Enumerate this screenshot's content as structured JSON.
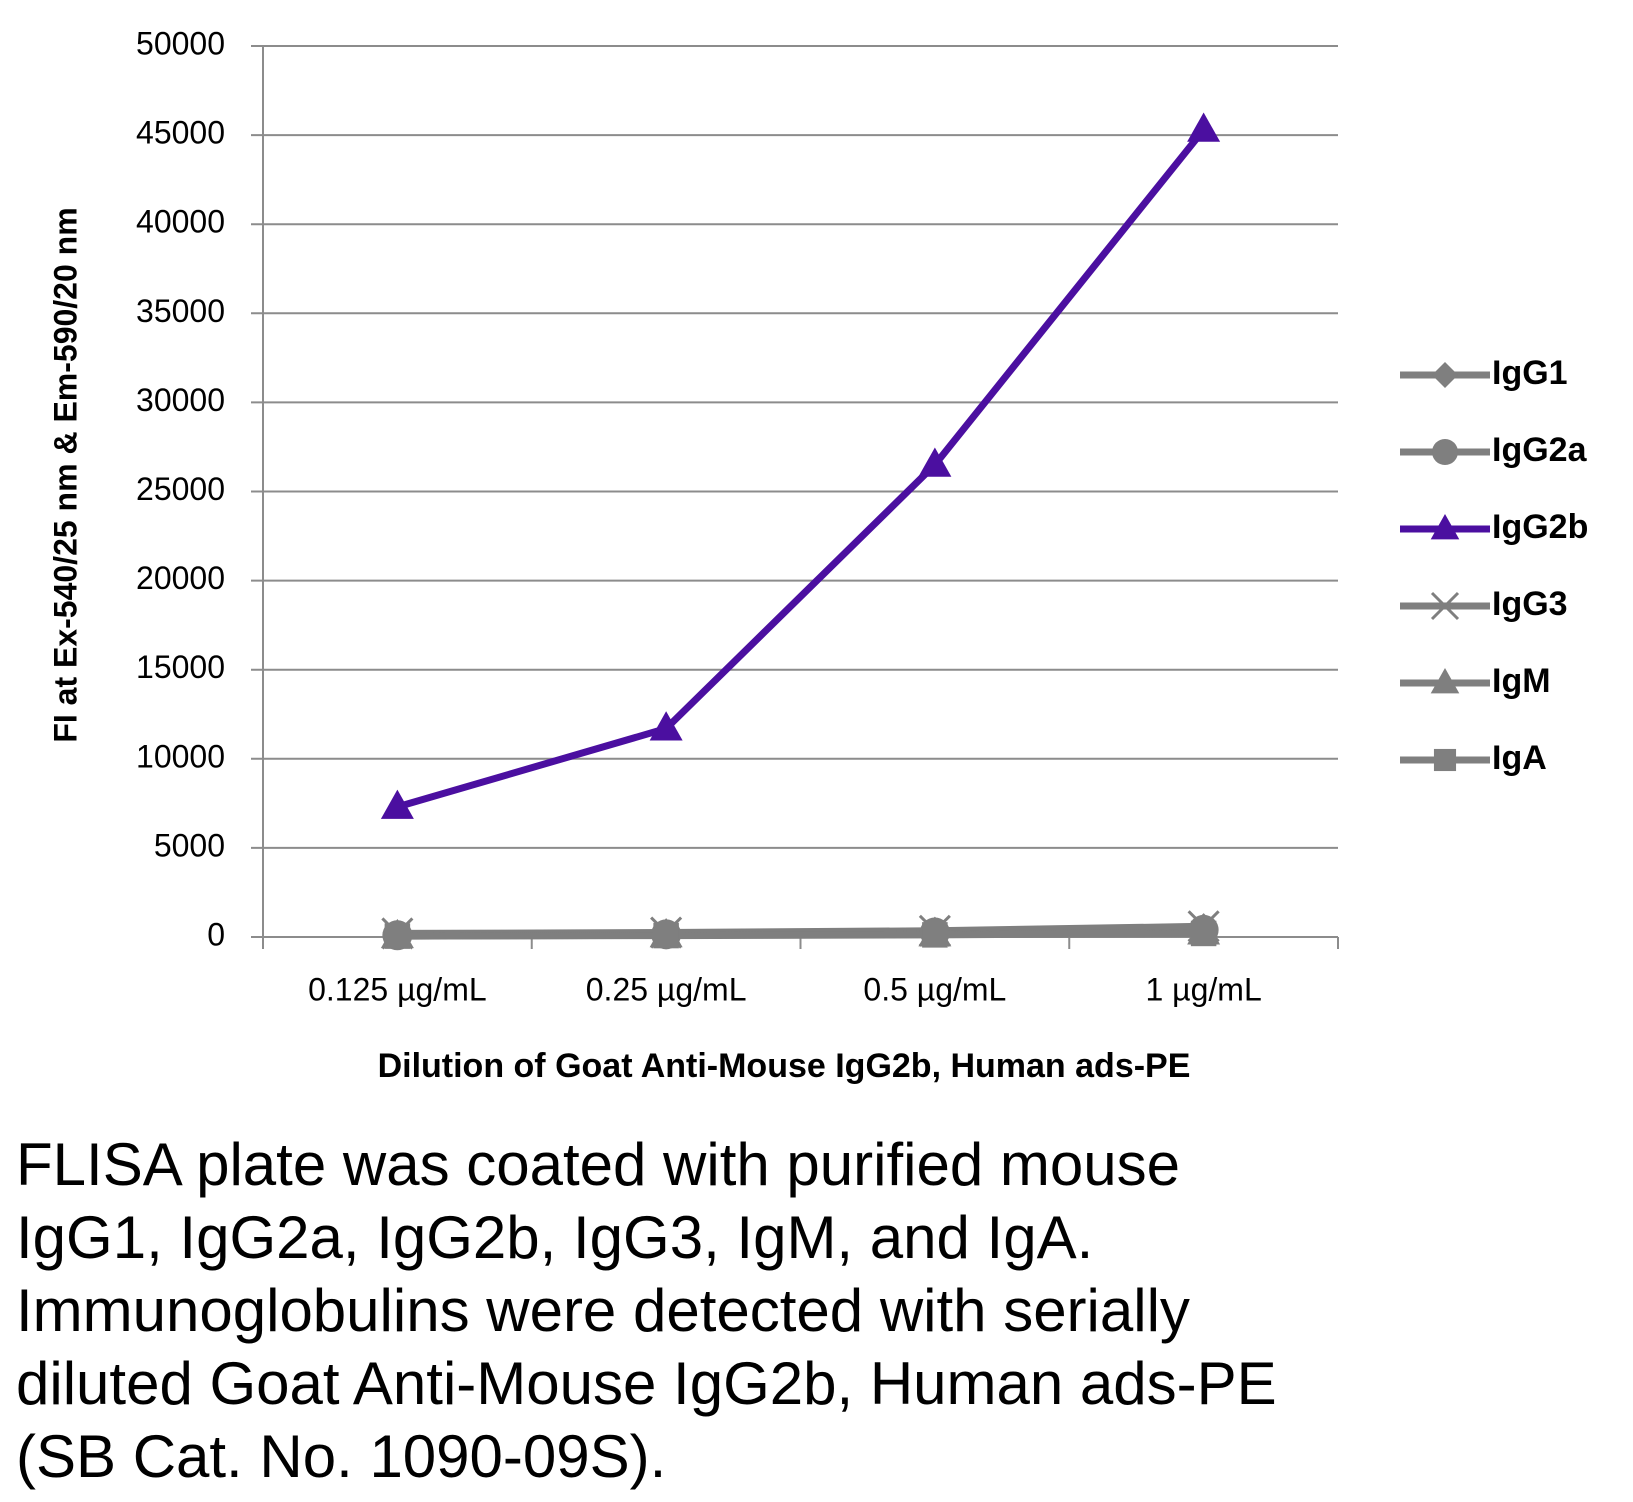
{
  "chart_data": {
    "type": "line",
    "y_label": "FI at Ex-540/25 nm & Em-590/20 nm",
    "x_label": "Dilution of Goat Anti-Mouse IgG2b, Human ads-PE",
    "categories": [
      "0.125 µg/mL",
      "0.25 µg/mL",
      "0.5 µg/mL",
      "1 µg/mL"
    ],
    "series": [
      {
        "name": "IgG1",
        "color": "#7f7f7f",
        "marker": "diamond",
        "values": [
          150,
          200,
          300,
          500
        ]
      },
      {
        "name": "IgG2a",
        "color": "#7f7f7f",
        "marker": "circle",
        "values": [
          100,
          150,
          250,
          400
        ]
      },
      {
        "name": "IgG2b",
        "color": "#4b0fa0",
        "marker": "triangle",
        "values": [
          7300,
          11700,
          26500,
          45300
        ]
      },
      {
        "name": "IgG3",
        "color": "#7f7f7f",
        "marker": "x",
        "values": [
          200,
          250,
          350,
          600
        ]
      },
      {
        "name": "IgM",
        "color": "#7f7f7f",
        "marker": "triangle",
        "values": [
          50,
          100,
          150,
          250
        ]
      },
      {
        "name": "IgA",
        "color": "#7f7f7f",
        "marker": "square",
        "values": [
          50,
          80,
          120,
          200
        ]
      }
    ],
    "ylim": [
      0,
      50000
    ],
    "yticks": [
      0,
      5000,
      10000,
      15000,
      20000,
      25000,
      30000,
      35000,
      40000,
      45000,
      50000
    ],
    "grid": true,
    "legend": "right"
  },
  "caption": [
    "FLISA plate was coated with purified mouse",
    "IgG1, IgG2a, IgG2b, IgG3, IgM, and IgA.",
    "Immunoglobulins were detected with serially",
    "diluted Goat Anti-Mouse IgG2b, Human ads-PE",
    "(SB Cat. No. 1090-09S)."
  ]
}
